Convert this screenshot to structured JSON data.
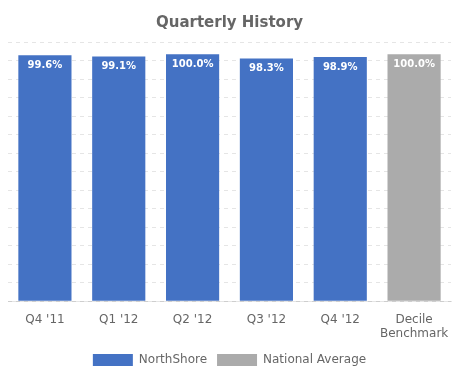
{
  "chart_data": {
    "type": "bar",
    "title": "Quarterly History",
    "categories": [
      "Q4 '11",
      "Q1 '12",
      "Q2 '12",
      "Q3 '12",
      "Q4 '12",
      "Decile\nBenchmark"
    ],
    "series": [
      {
        "name": "NorthShore",
        "color": "#4472C4",
        "values": [
          99.6,
          99.1,
          100.0,
          98.3,
          98.9,
          null
        ],
        "value_labels": [
          "99.6%",
          "99.1%",
          "100.0%",
          "98.3%",
          "98.9%",
          null
        ]
      },
      {
        "name": "National Average",
        "color": "#ABABAB",
        "values": [
          null,
          null,
          null,
          null,
          null,
          100.0
        ],
        "value_labels": [
          null,
          null,
          null,
          null,
          null,
          "100.0%"
        ]
      }
    ],
    "ylim": [
      0,
      105
    ],
    "yticks": [
      0,
      7.5,
      15,
      22.5,
      30,
      37.5,
      45,
      52.5,
      60,
      67.5,
      75,
      82.5,
      90,
      97.5,
      105
    ],
    "grid": true,
    "tick_labels": "x",
    "data_labels": true,
    "legend": "bottom"
  }
}
